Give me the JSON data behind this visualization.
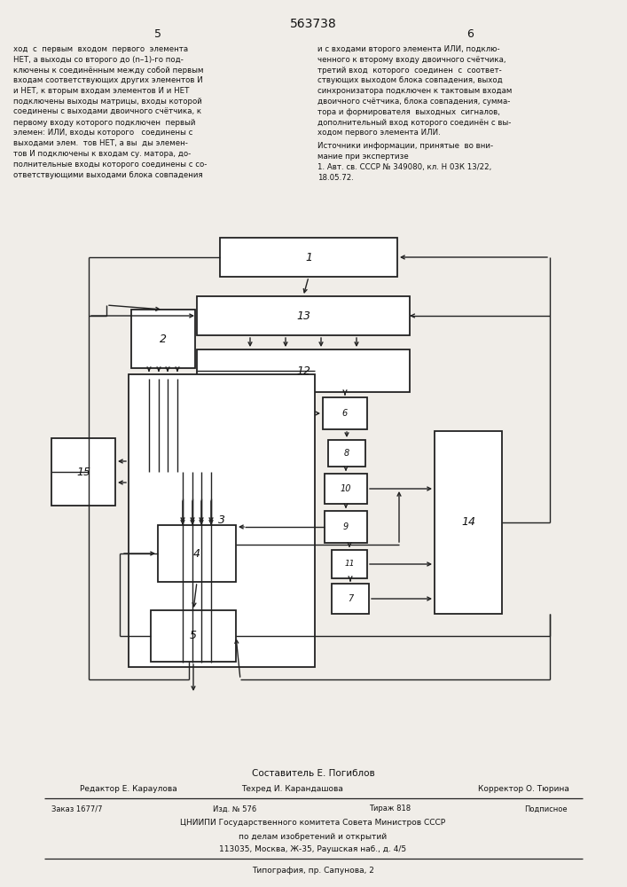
{
  "title": "563738",
  "left_col_lines": [
    "ход  с  первым  входом  первого  элемента",
    "НЕТ, а выходы со второго до (n–1)‐го под-",
    "ключены к соединённым между собой первым",
    "входам соответствующих других элементов И",
    "и НЕТ, к вторым входам элементов И и НЕТ",
    "подключены выходы матрицы, входы которой",
    "соединены с выходами двоичного счётчика, к",
    "первому входу которого подключен  первый",
    "элемен: ИЛИ, входы которого   соединены с",
    "выходами элем.  тов НЕТ, а вы  ды элемен-",
    "тов И подключены к входам су. матора, до-",
    "полнительные входы которого соединены с со-",
    "ответствующими выходами блока совпадения"
  ],
  "right_col_lines": [
    "и с входами второго элемента ИЛИ, подклю-",
    "ченного к второму входу двоичного счётчика,",
    "третий вход  которого  соединен  с  соответ-",
    "ствующих выходом блока совпадения, выход",
    "синхронизатора подключен к тактовым входам",
    "двоичного счётчика, блока совпадения, сумма-",
    "тора и формирователя  выходных  сигналов,",
    "дополнительный вход которого соединён с вы-",
    "ходом первого элемента ИЛИ."
  ],
  "ref_header": "Источники информации, принятые  во вни-",
  "ref_text": [
    "мание при экспертизе",
    "1. Авт. св. СССР № 349080, кл. Н 03К 13/22,",
    "18.05.72."
  ],
  "footer_composer": "Составитель Е. Погиблов",
  "footer_editor": "Редактор Е. Караулова",
  "footer_tech": "Техред И. Карандашова",
  "footer_corrector": "Корректор О. Тюрина",
  "footer_order": "Заказ 1677/7",
  "footer_izd": "Изд. № 576",
  "footer_tirazh": "Тираж 818",
  "footer_podp": "Подписное",
  "footer_org": "ЦНИИПИ Государственного комитета Совета Министров СССР",
  "footer_org2": "по делам изобретений и открытий",
  "footer_addr": "113035, Москва, Ж-35, Раушская наб., д. 4/5",
  "footer_print": "Типография, пр. Сапунова, 2",
  "bg_color": "#f0ede8",
  "line_color": "#222222",
  "text_color": "#111111"
}
